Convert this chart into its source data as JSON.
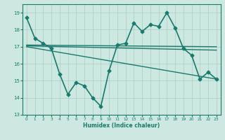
{
  "xlabel": "Humidex (Indice chaleur)",
  "background_color": "#cce8e0",
  "line_color": "#1a7a6e",
  "grid_color": "#aaccc4",
  "xticks": [
    0,
    1,
    2,
    3,
    4,
    5,
    6,
    7,
    8,
    9,
    10,
    11,
    12,
    13,
    14,
    15,
    16,
    17,
    18,
    19,
    20,
    21,
    22,
    23
  ],
  "yticks": [
    13,
    14,
    15,
    16,
    17,
    18,
    19
  ],
  "ylim": [
    13,
    19.5
  ],
  "xlim": [
    -0.5,
    23.5
  ],
  "series": [
    {
      "x": [
        0,
        1,
        2,
        3,
        4,
        5,
        6,
        7,
        8,
        9,
        10,
        11,
        12,
        13,
        14,
        15,
        16,
        17,
        18,
        19,
        20,
        21,
        22,
        23
      ],
      "y": [
        18.7,
        17.5,
        17.2,
        16.9,
        15.4,
        14.2,
        14.9,
        14.7,
        14.0,
        13.5,
        15.6,
        17.1,
        17.2,
        18.4,
        17.9,
        18.3,
        18.2,
        19.0,
        18.1,
        16.9,
        16.5,
        15.1,
        15.5,
        15.1
      ],
      "marker": "D",
      "markersize": 2.5,
      "linewidth": 1.2
    },
    {
      "x": [
        0,
        23
      ],
      "y": [
        17.1,
        17.0
      ],
      "marker": null,
      "linewidth": 1.0
    },
    {
      "x": [
        0,
        23
      ],
      "y": [
        17.05,
        16.8
      ],
      "marker": null,
      "linewidth": 1.0
    },
    {
      "x": [
        0,
        23
      ],
      "y": [
        17.0,
        15.1
      ],
      "marker": null,
      "linewidth": 1.0
    }
  ]
}
